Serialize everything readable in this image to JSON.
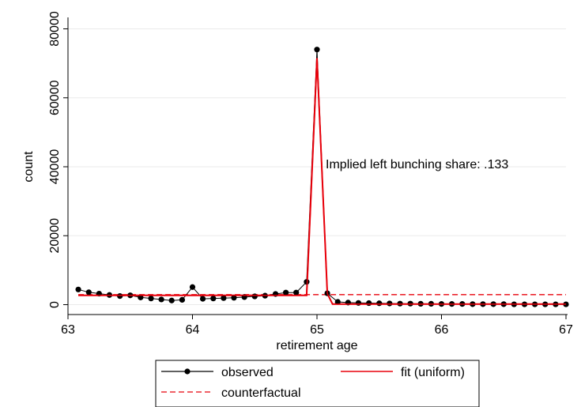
{
  "chart_data": {
    "type": "line",
    "xlabel": "retirement age",
    "ylabel": "count",
    "xlim": [
      63,
      67
    ],
    "ylim": [
      0,
      80000
    ],
    "xticks": [
      {
        "value": 63,
        "label": "63"
      },
      {
        "value": 64,
        "label": "64"
      },
      {
        "value": 65,
        "label": "65"
      },
      {
        "value": 66,
        "label": "66"
      },
      {
        "value": 67,
        "label": "67"
      }
    ],
    "yticks": [
      {
        "value": 0,
        "label": "0"
      },
      {
        "value": 20000,
        "label": "20000"
      },
      {
        "value": 40000,
        "label": "40000"
      },
      {
        "value": 60000,
        "label": "60000"
      },
      {
        "value": 80000,
        "label": "80000"
      }
    ],
    "grid": "horizontal",
    "annotation": {
      "text": "Implied left bunching share: .133",
      "x": 65.07,
      "y": 39500
    },
    "legend": {
      "placement": "bottom",
      "entries": [
        "observed",
        "fit (uniform)",
        "counterfactual"
      ]
    },
    "series": [
      {
        "name": "observed",
        "style": "black line with markers",
        "color": "#000000",
        "points": [
          [
            63.083,
            4400
          ],
          [
            63.167,
            3600
          ],
          [
            63.25,
            3200
          ],
          [
            63.333,
            2800
          ],
          [
            63.417,
            2500
          ],
          [
            63.5,
            2700
          ],
          [
            63.583,
            2100
          ],
          [
            63.667,
            1800
          ],
          [
            63.75,
            1500
          ],
          [
            63.833,
            1200
          ],
          [
            63.917,
            1400
          ],
          [
            64.0,
            5100
          ],
          [
            64.083,
            1700
          ],
          [
            64.167,
            1800
          ],
          [
            64.25,
            1900
          ],
          [
            64.333,
            2000
          ],
          [
            64.417,
            2200
          ],
          [
            64.5,
            2400
          ],
          [
            64.583,
            2600
          ],
          [
            64.667,
            3100
          ],
          [
            64.75,
            3500
          ],
          [
            64.833,
            3500
          ],
          [
            64.917,
            6600
          ],
          [
            65.0,
            74000
          ],
          [
            65.083,
            3300
          ],
          [
            65.167,
            800
          ],
          [
            65.25,
            600
          ],
          [
            65.333,
            500
          ],
          [
            65.417,
            450
          ],
          [
            65.5,
            400
          ],
          [
            65.583,
            350
          ],
          [
            65.667,
            300
          ],
          [
            65.75,
            300
          ],
          [
            65.833,
            250
          ],
          [
            65.917,
            250
          ],
          [
            66.0,
            200
          ],
          [
            66.083,
            200
          ],
          [
            66.167,
            200
          ],
          [
            66.25,
            150
          ],
          [
            66.333,
            150
          ],
          [
            66.417,
            150
          ],
          [
            66.5,
            150
          ],
          [
            66.583,
            100
          ],
          [
            66.667,
            100
          ],
          [
            66.75,
            100
          ],
          [
            66.833,
            100
          ],
          [
            66.917,
            100
          ],
          [
            67.0,
            100
          ]
        ]
      },
      {
        "name": "fit (uniform)",
        "style": "solid red line",
        "color": "#e8000b",
        "points": [
          [
            63.083,
            2700
          ],
          [
            64.917,
            2700
          ],
          [
            65.0,
            71500
          ],
          [
            65.083,
            3200
          ],
          [
            65.125,
            150
          ],
          [
            67.0,
            150
          ]
        ]
      },
      {
        "name": "counterfactual",
        "style": "dashed red line",
        "color": "#e8000b",
        "points": [
          [
            63.083,
            2900
          ],
          [
            67.0,
            2900
          ]
        ]
      }
    ]
  }
}
